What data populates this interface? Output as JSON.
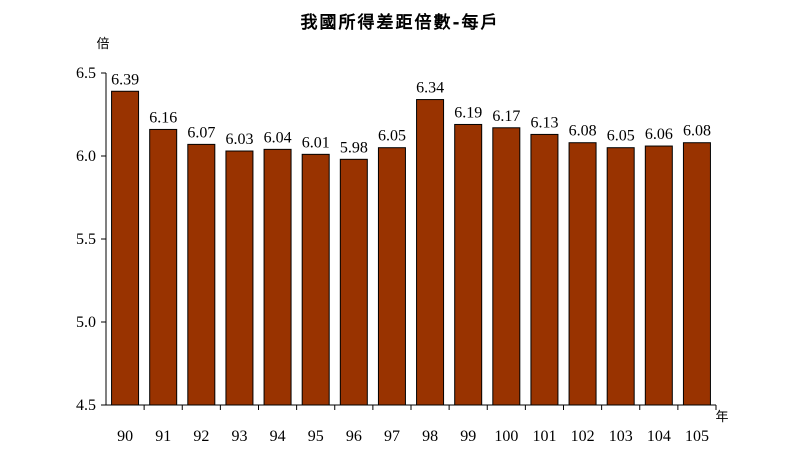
{
  "chart_data": {
    "type": "bar",
    "title": "我國所得差距倍數-每戶",
    "ylabel": "倍",
    "xlabel": "年",
    "categories": [
      "90",
      "91",
      "92",
      "93",
      "94",
      "95",
      "96",
      "97",
      "98",
      "99",
      "100",
      "101",
      "102",
      "103",
      "104",
      "105"
    ],
    "values": [
      6.39,
      6.16,
      6.07,
      6.03,
      6.04,
      6.01,
      5.98,
      6.05,
      6.34,
      6.19,
      6.17,
      6.13,
      6.08,
      6.05,
      6.06,
      6.08
    ],
    "data_labels": [
      "6.39",
      "6.16",
      "6.07",
      "6.03",
      "6.04",
      "6.01",
      "5.98",
      "6.05",
      "6.34",
      "6.19",
      "6.17",
      "6.13",
      "6.08",
      "6.05",
      "6.06",
      "6.08"
    ],
    "ylim": [
      4.5,
      6.5
    ],
    "yticks": [
      "4.5",
      "5.0",
      "5.5",
      "6.0",
      "6.5"
    ],
    "bar_color": "#993300",
    "grid": false,
    "legend": "none"
  }
}
